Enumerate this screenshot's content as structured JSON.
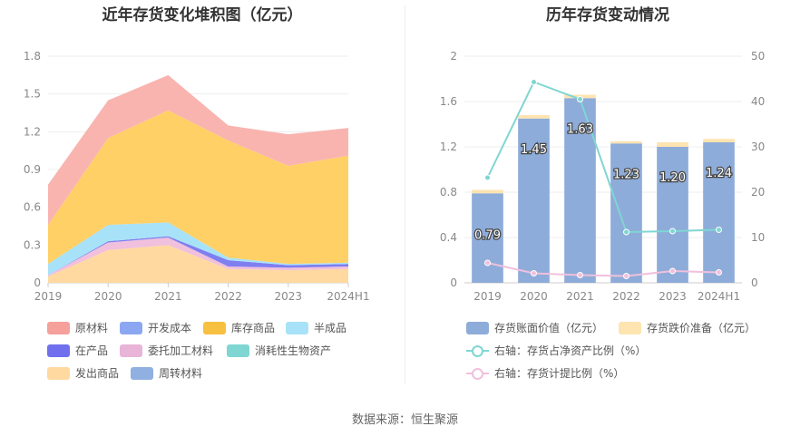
{
  "source": "数据来源：恒生聚源",
  "chart_data": [
    {
      "type": "area",
      "stacked": true,
      "title": "近年存货变化堆积图（亿元）",
      "categories": [
        "2019",
        "2020",
        "2021",
        "2022",
        "2023",
        "2024H1"
      ],
      "ylim": [
        0,
        1.8
      ],
      "yticks": [
        "0",
        "0.3",
        "0.6",
        "0.9",
        "1.2",
        "1.5",
        "1.8"
      ],
      "series": [
        {
          "name": "发出商品",
          "color": "#ffd9a0",
          "values": [
            0.05,
            0.26,
            0.3,
            0.11,
            0.1,
            0.11
          ]
        },
        {
          "name": "委托加工材料",
          "color": "#f0c0dc",
          "values": [
            0.01,
            0.06,
            0.06,
            0.02,
            0.02,
            0.02
          ]
        },
        {
          "name": "在产品",
          "color": "#7f7ff0",
          "values": [
            0.0,
            0.01,
            0.01,
            0.05,
            0.02,
            0.02
          ]
        },
        {
          "name": "半成品",
          "color": "#a8e2f8",
          "values": [
            0.09,
            0.13,
            0.11,
            0.02,
            0.01,
            0.01
          ]
        },
        {
          "name": "库存商品",
          "color": "#ffd066",
          "values": [
            0.31,
            0.69,
            0.89,
            0.93,
            0.78,
            0.85
          ]
        },
        {
          "name": "原材料",
          "color": "#f9b4b0",
          "values": [
            0.32,
            0.3,
            0.28,
            0.12,
            0.25,
            0.22
          ]
        },
        {
          "name": "开发成本",
          "color": "#8ca7f2",
          "values": [
            0,
            0,
            0,
            0,
            0,
            0
          ]
        },
        {
          "name": "消耗性生物资产",
          "color": "#7fd6d2",
          "values": [
            0,
            0,
            0,
            0,
            0,
            0
          ]
        },
        {
          "name": "周转材料",
          "color": "#8fb0e0",
          "values": [
            0,
            0,
            0,
            0,
            0,
            0
          ]
        }
      ],
      "legend": [
        {
          "label": "原材料",
          "color": "#f5a09a"
        },
        {
          "label": "开发成本",
          "color": "#8ca7f2"
        },
        {
          "label": "库存商品",
          "color": "#f7c040"
        },
        {
          "label": "半成品",
          "color": "#a8e2f8"
        },
        {
          "label": "在产品",
          "color": "#7070ee"
        },
        {
          "label": "委托加工材料",
          "color": "#e8b4d8"
        },
        {
          "label": "消耗性生物资产",
          "color": "#7fd6d2"
        },
        {
          "label": "发出商品",
          "color": "#ffd9a0"
        },
        {
          "label": "周转材料",
          "color": "#8fb0e0"
        }
      ]
    },
    {
      "type": "bar+line",
      "title": "历年存货变动情况",
      "categories": [
        "2019",
        "2020",
        "2021",
        "2022",
        "2023",
        "2024H1"
      ],
      "ylim": [
        0,
        2
      ],
      "yticks": [
        "0",
        "0.4",
        "0.8",
        "1.2",
        "1.6",
        "2"
      ],
      "y2lim": [
        0,
        50
      ],
      "y2ticks": [
        "0",
        "10",
        "20",
        "30",
        "40",
        "50"
      ],
      "bars": {
        "name": "存货账面价值（亿元）",
        "color": "#8eacd9",
        "values": [
          0.79,
          1.45,
          1.63,
          1.23,
          1.2,
          1.24
        ],
        "labels": [
          "0.79",
          "1.45",
          "1.63",
          "1.23",
          "1.20",
          "1.24"
        ]
      },
      "bars_top": {
        "name": "存货跌价准备（亿元）",
        "color": "#fde4b0",
        "values": [
          0.03,
          0.03,
          0.03,
          0.02,
          0.04,
          0.03
        ]
      },
      "lines": [
        {
          "name": "右轴：存货占净资产比例（%）",
          "color": "#7fd6d2",
          "values": [
            23.2,
            44.3,
            40.5,
            11.2,
            11.4,
            11.7
          ]
        },
        {
          "name": "右轴：存货计提比例（%）",
          "color": "#f0c0dc",
          "values": [
            4.4,
            2.1,
            1.7,
            1.5,
            2.6,
            2.3
          ]
        }
      ]
    }
  ]
}
